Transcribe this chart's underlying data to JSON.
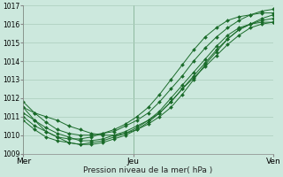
{
  "title": "Pression niveau de la mer( hPa )",
  "bg_color": "#cce8dd",
  "grid_color": "#aaccbb",
  "line_color": "#1a6b2a",
  "marker_color": "#1a6b2a",
  "ylim": [
    1009,
    1017
  ],
  "yticks": [
    1009,
    1010,
    1011,
    1012,
    1013,
    1014,
    1015,
    1016,
    1017
  ],
  "xtick_labels": [
    "Mer",
    "Jeu",
    "Ven"
  ],
  "xtick_positions": [
    0,
    0.44,
    1.0
  ],
  "vline_positions": [
    0.0,
    0.44,
    1.0
  ],
  "series": [
    [
      1011.5,
      1011.2,
      1011.0,
      1010.8,
      1010.5,
      1010.3,
      1010.1,
      1010.0,
      1010.0,
      1010.1,
      1010.3,
      1010.6,
      1011.0,
      1011.5,
      1012.2,
      1013.0,
      1013.8,
      1014.5,
      1015.2,
      1015.7,
      1016.0,
      1016.3,
      1016.5
    ],
    [
      1011.0,
      1010.5,
      1010.2,
      1009.9,
      1009.6,
      1009.5,
      1009.5,
      1009.6,
      1009.8,
      1010.0,
      1010.3,
      1010.7,
      1011.2,
      1011.8,
      1012.5,
      1013.2,
      1013.9,
      1014.6,
      1015.2,
      1015.7,
      1016.0,
      1016.2,
      1016.3
    ],
    [
      1011.2,
      1010.8,
      1010.4,
      1010.1,
      1009.9,
      1009.7,
      1009.7,
      1009.8,
      1010.0,
      1010.2,
      1010.5,
      1010.8,
      1011.2,
      1011.8,
      1012.5,
      1013.1,
      1013.7,
      1014.3,
      1014.9,
      1015.4,
      1015.8,
      1016.0,
      1016.1
    ],
    [
      1010.8,
      1010.3,
      1009.9,
      1009.7,
      1009.6,
      1009.5,
      1009.6,
      1009.7,
      1009.9,
      1010.1,
      1010.4,
      1010.8,
      1011.3,
      1012.0,
      1012.7,
      1013.4,
      1014.1,
      1014.8,
      1015.4,
      1015.8,
      1016.0,
      1016.1,
      1016.1
    ],
    [
      1011.8,
      1011.2,
      1010.7,
      1010.3,
      1010.1,
      1010.0,
      1010.0,
      1010.1,
      1010.2,
      1010.5,
      1010.8,
      1011.2,
      1011.8,
      1012.5,
      1013.2,
      1014.0,
      1014.7,
      1015.3,
      1015.8,
      1016.2,
      1016.5,
      1016.7,
      1016.8
    ],
    [
      1011.5,
      1010.8,
      1010.2,
      1009.9,
      1009.8,
      1009.8,
      1009.9,
      1010.1,
      1010.3,
      1010.6,
      1011.0,
      1011.5,
      1012.2,
      1013.0,
      1013.8,
      1014.6,
      1015.3,
      1015.8,
      1016.2,
      1016.4,
      1016.5,
      1016.6,
      1016.6
    ]
  ],
  "n_points": 23
}
